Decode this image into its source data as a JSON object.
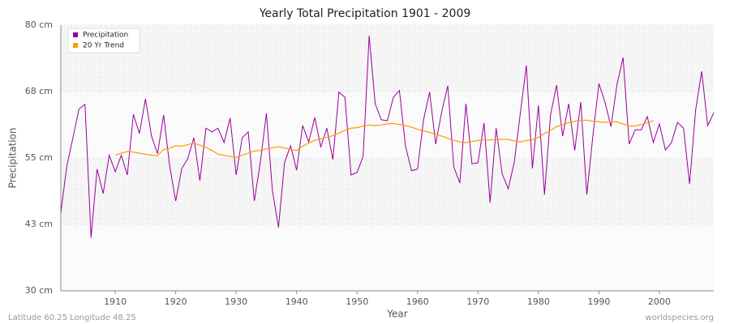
{
  "chart_data": {
    "type": "line",
    "title": "Yearly Total Precipitation 1901 - 2009",
    "x_label": "Year",
    "y_label": "Precipitation",
    "footer_left": "Latitude 60.25 Longitude 48.25",
    "footer_right": "worldspecies.org",
    "legend": "upper left",
    "grid": true,
    "xlim": [
      1901,
      2009
    ],
    "xticks": [
      1910,
      1920,
      1930,
      1940,
      1950,
      1960,
      1970,
      1980,
      1990,
      2000
    ],
    "ylim": [
      30,
      80
    ],
    "yticks": [
      {
        "value": 30,
        "label": "30 cm"
      },
      {
        "value": 42.5,
        "label": "43 cm"
      },
      {
        "value": 55,
        "label": "55 cm"
      },
      {
        "value": 67.5,
        "label": "68 cm"
      },
      {
        "value": 80,
        "label": "80 cm"
      }
    ],
    "x": [
      1901,
      1902,
      1903,
      1904,
      1905,
      1906,
      1907,
      1908,
      1909,
      1910,
      1911,
      1912,
      1913,
      1914,
      1915,
      1916,
      1917,
      1918,
      1919,
      1920,
      1921,
      1922,
      1923,
      1924,
      1925,
      1926,
      1927,
      1928,
      1929,
      1930,
      1931,
      1932,
      1933,
      1934,
      1935,
      1936,
      1937,
      1938,
      1939,
      1940,
      1941,
      1942,
      1943,
      1944,
      1945,
      1946,
      1947,
      1948,
      1949,
      1950,
      1951,
      1952,
      1953,
      1954,
      1955,
      1956,
      1957,
      1958,
      1959,
      1960,
      1961,
      1962,
      1963,
      1964,
      1965,
      1966,
      1967,
      1968,
      1969,
      1970,
      1971,
      1972,
      1973,
      1974,
      1975,
      1976,
      1977,
      1978,
      1979,
      1980,
      1981,
      1982,
      1983,
      1984,
      1985,
      1986,
      1987,
      1988,
      1989,
      1990,
      1991,
      1992,
      1993,
      1994,
      1995,
      1996,
      1997,
      1998,
      1999,
      2000,
      2001,
      2002,
      2003,
      2004,
      2005,
      2006,
      2007,
      2008,
      2009
    ],
    "series": [
      {
        "name": "Precipitation",
        "color": "#990099",
        "values": [
          44.8,
          53.5,
          58.8,
          64.2,
          65.1,
          40.0,
          52.9,
          48.3,
          55.5,
          52.4,
          55.5,
          51.8,
          63.2,
          59.6,
          66.1,
          59.1,
          55.8,
          63.1,
          53.5,
          46.9,
          53.0,
          54.9,
          58.8,
          50.7,
          60.6,
          59.9,
          60.6,
          57.9,
          62.5,
          51.8,
          58.8,
          59.9,
          46.9,
          54.2,
          63.4,
          48.8,
          41.9,
          54.1,
          57.3,
          52.7,
          61.1,
          58.0,
          62.6,
          57.1,
          60.6,
          54.7,
          67.4,
          66.4,
          51.8,
          52.3,
          55.3,
          78.0,
          65.2,
          62.2,
          62.0,
          66.4,
          67.7,
          57.3,
          52.6,
          52.9,
          62.2,
          67.4,
          57.6,
          63.7,
          68.6,
          53.3,
          50.3,
          65.2,
          53.9,
          54.1,
          61.6,
          46.6,
          60.6,
          52.0,
          49.2,
          54.2,
          63.4,
          72.4,
          53.0,
          64.9,
          48.1,
          63.1,
          68.7,
          59.1,
          65.2,
          56.4,
          65.5,
          48.1,
          59.1,
          69.0,
          65.5,
          60.9,
          68.9,
          73.9,
          57.6,
          60.3,
          60.3,
          62.8,
          57.9,
          61.4,
          56.5,
          57.9,
          61.7,
          60.6,
          50.1,
          64.0,
          71.3,
          61.1,
          63.5
        ]
      },
      {
        "name": "20 Yr Trend",
        "color": "#ff9900",
        "values": [
          null,
          null,
          null,
          null,
          null,
          null,
          null,
          null,
          null,
          55.5,
          55.9,
          56.2,
          56.1,
          55.9,
          55.7,
          55.5,
          55.4,
          56.6,
          56.8,
          57.3,
          57.2,
          57.5,
          57.8,
          57.4,
          57.0,
          56.4,
          55.7,
          55.5,
          55.3,
          55.1,
          55.5,
          55.9,
          56.3,
          56.4,
          56.7,
          56.9,
          57.1,
          56.9,
          56.6,
          56.4,
          57.2,
          57.8,
          58.3,
          58.6,
          58.9,
          59.2,
          59.7,
          60.2,
          60.6,
          60.7,
          61.0,
          61.2,
          61.1,
          61.2,
          61.4,
          61.5,
          61.3,
          61.1,
          60.8,
          60.4,
          60.1,
          59.8,
          59.5,
          59.1,
          58.7,
          58.3,
          58.0,
          57.9,
          58.1,
          58.3,
          58.4,
          58.4,
          58.5,
          58.5,
          58.5,
          58.2,
          58.0,
          58.3,
          58.4,
          58.9,
          59.6,
          60.2,
          60.9,
          61.3,
          61.6,
          61.9,
          62.1,
          62.1,
          61.9,
          61.8,
          61.7,
          61.8,
          61.8,
          61.4,
          61.0,
          61.0,
          61.3,
          61.6,
          62.0,
          null,
          null,
          null,
          null,
          null,
          null,
          null,
          null,
          null,
          null
        ]
      }
    ]
  }
}
